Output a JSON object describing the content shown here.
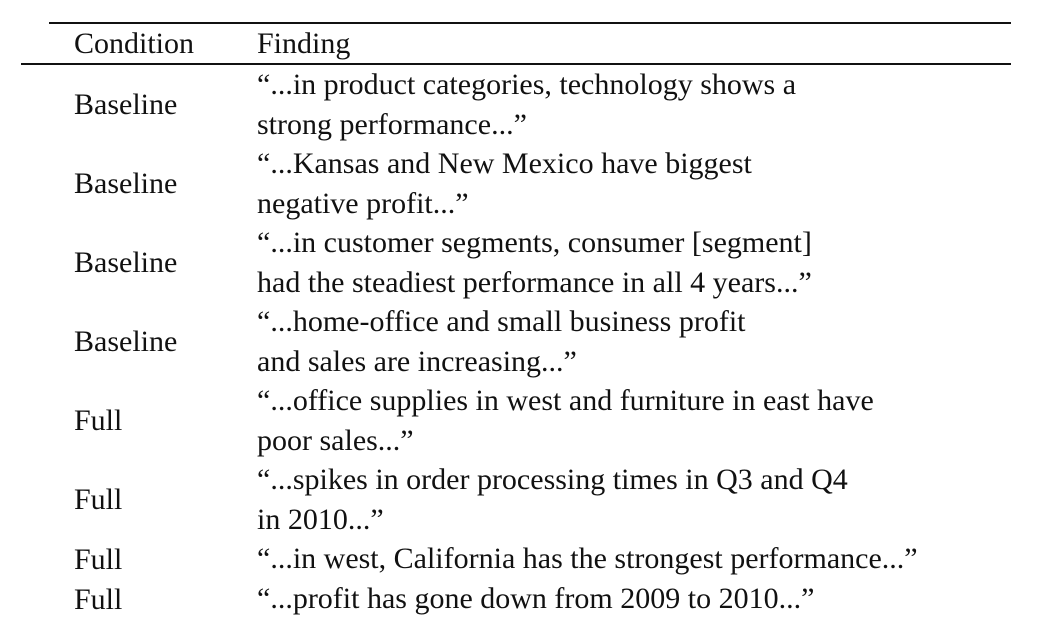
{
  "table": {
    "headers": {
      "condition": "Condition",
      "finding": "Finding"
    },
    "rows": [
      {
        "condition": "Baseline",
        "finding": [
          "“...in product categories, technology shows a",
          "strong performance...”"
        ]
      },
      {
        "condition": "Baseline",
        "finding": [
          "“...Kansas and New Mexico have biggest",
          "negative profit...”"
        ]
      },
      {
        "condition": "Baseline",
        "finding": [
          "“...in customer segments, consumer [segment]",
          "had the steadiest performance in all 4 years...”"
        ]
      },
      {
        "condition": "Baseline",
        "finding": [
          "“...home-office and small business profit",
          "and sales are increasing...”"
        ]
      },
      {
        "condition": "Full",
        "finding": [
          "“...office supplies in west and furniture in east have",
          "poor sales...”"
        ]
      },
      {
        "condition": "Full",
        "finding": [
          "“...spikes in order processing times in Q3 and Q4",
          "in 2010...”"
        ]
      },
      {
        "condition": "Full",
        "finding": [
          "“...in west, California has the strongest performance...”"
        ]
      },
      {
        "condition": "Full",
        "finding": [
          "“...profit has gone down from 2009 to 2010...”"
        ]
      }
    ]
  }
}
